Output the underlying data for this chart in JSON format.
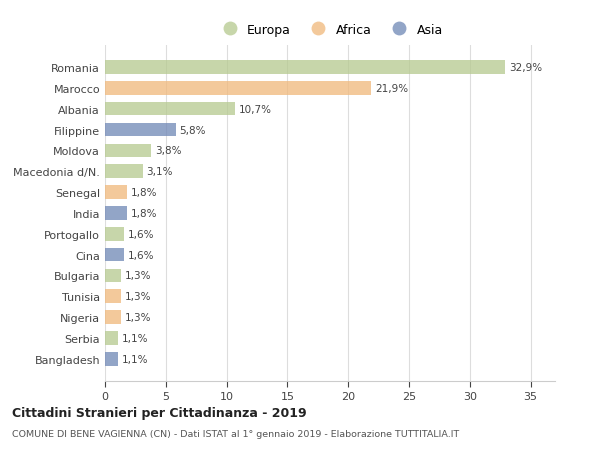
{
  "categories": [
    "Romania",
    "Marocco",
    "Albania",
    "Filippine",
    "Moldova",
    "Macedonia d/N.",
    "Senegal",
    "India",
    "Portogallo",
    "Cina",
    "Bulgaria",
    "Tunisia",
    "Nigeria",
    "Serbia",
    "Bangladesh"
  ],
  "values": [
    32.9,
    21.9,
    10.7,
    5.8,
    3.8,
    3.1,
    1.8,
    1.8,
    1.6,
    1.6,
    1.3,
    1.3,
    1.3,
    1.1,
    1.1
  ],
  "labels": [
    "32,9%",
    "21,9%",
    "10,7%",
    "5,8%",
    "3,8%",
    "3,1%",
    "1,8%",
    "1,8%",
    "1,6%",
    "1,6%",
    "1,3%",
    "1,3%",
    "1,3%",
    "1,1%",
    "1,1%"
  ],
  "colors": [
    "#b5c98e",
    "#f0b87a",
    "#b5c98e",
    "#6e87b5",
    "#b5c98e",
    "#b5c98e",
    "#f0b87a",
    "#6e87b5",
    "#b5c98e",
    "#6e87b5",
    "#b5c98e",
    "#f0b87a",
    "#f0b87a",
    "#b5c98e",
    "#6e87b5"
  ],
  "legend_labels": [
    "Europa",
    "Africa",
    "Asia"
  ],
  "legend_colors": [
    "#b5c98e",
    "#f0b87a",
    "#6e87b5"
  ],
  "title": "Cittadini Stranieri per Cittadinanza - 2019",
  "subtitle": "COMUNE DI BENE VAGIENNA (CN) - Dati ISTAT al 1° gennaio 2019 - Elaborazione TUTTITALIA.IT",
  "xlim": [
    0,
    37
  ],
  "xticks": [
    0,
    5,
    10,
    15,
    20,
    25,
    30,
    35
  ],
  "bg_color": "#ffffff",
  "grid_color": "#dddddd",
  "bar_height": 0.65
}
